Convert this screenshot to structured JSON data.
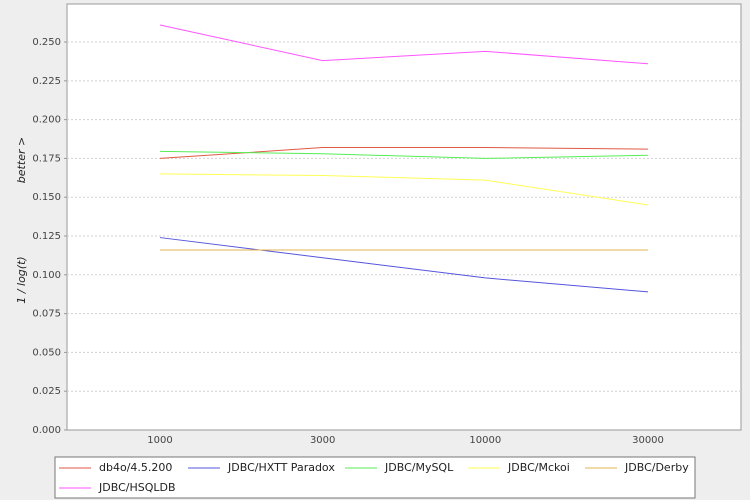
{
  "chart_data": {
    "type": "line",
    "y_label": "1 / log(t)",
    "y_annotation": "better >",
    "categories": [
      "1000",
      "3000",
      "10000",
      "30000"
    ],
    "series": [
      {
        "name": "db4o/4.5.200",
        "color": "#e05a44",
        "values": [
          0.175,
          0.182,
          0.182,
          0.181
        ]
      },
      {
        "name": "JDBC/HXTT Paradox",
        "color": "#5555dd",
        "values": [
          0.124,
          0.111,
          0.098,
          0.089
        ]
      },
      {
        "name": "JDBC/MySQL",
        "color": "#55ee55",
        "values": [
          0.1795,
          0.178,
          0.175,
          0.177
        ]
      },
      {
        "name": "JDBC/Mckoi",
        "color": "#ffff55",
        "values": [
          0.165,
          0.164,
          0.161,
          0.145
        ]
      },
      {
        "name": "JDBC/Derby",
        "color": "#e6b450",
        "values": [
          0.116,
          0.116,
          0.116,
          0.116
        ]
      },
      {
        "name": "JDBC/HSQLDB",
        "color": "#ff55ff",
        "values": [
          0.261,
          0.238,
          0.244,
          0.236
        ]
      }
    ],
    "ylim": [
      0,
      0.2745
    ],
    "yticks": [
      {
        "value": 0,
        "label": "0.000"
      },
      {
        "value": 0.025,
        "label": "0.025"
      },
      {
        "value": 0.05,
        "label": "0.050"
      },
      {
        "value": 0.075,
        "label": "0.075"
      },
      {
        "value": 0.1,
        "label": "0.100"
      },
      {
        "value": 0.125,
        "label": "0.125"
      },
      {
        "value": 0.15,
        "label": "0.150"
      },
      {
        "value": 0.175,
        "label": "0.175"
      },
      {
        "value": 0.2,
        "label": "0.200"
      },
      {
        "value": 0.225,
        "label": "0.225"
      },
      {
        "value": 0.25,
        "label": "0.250"
      }
    ],
    "grid": true
  }
}
